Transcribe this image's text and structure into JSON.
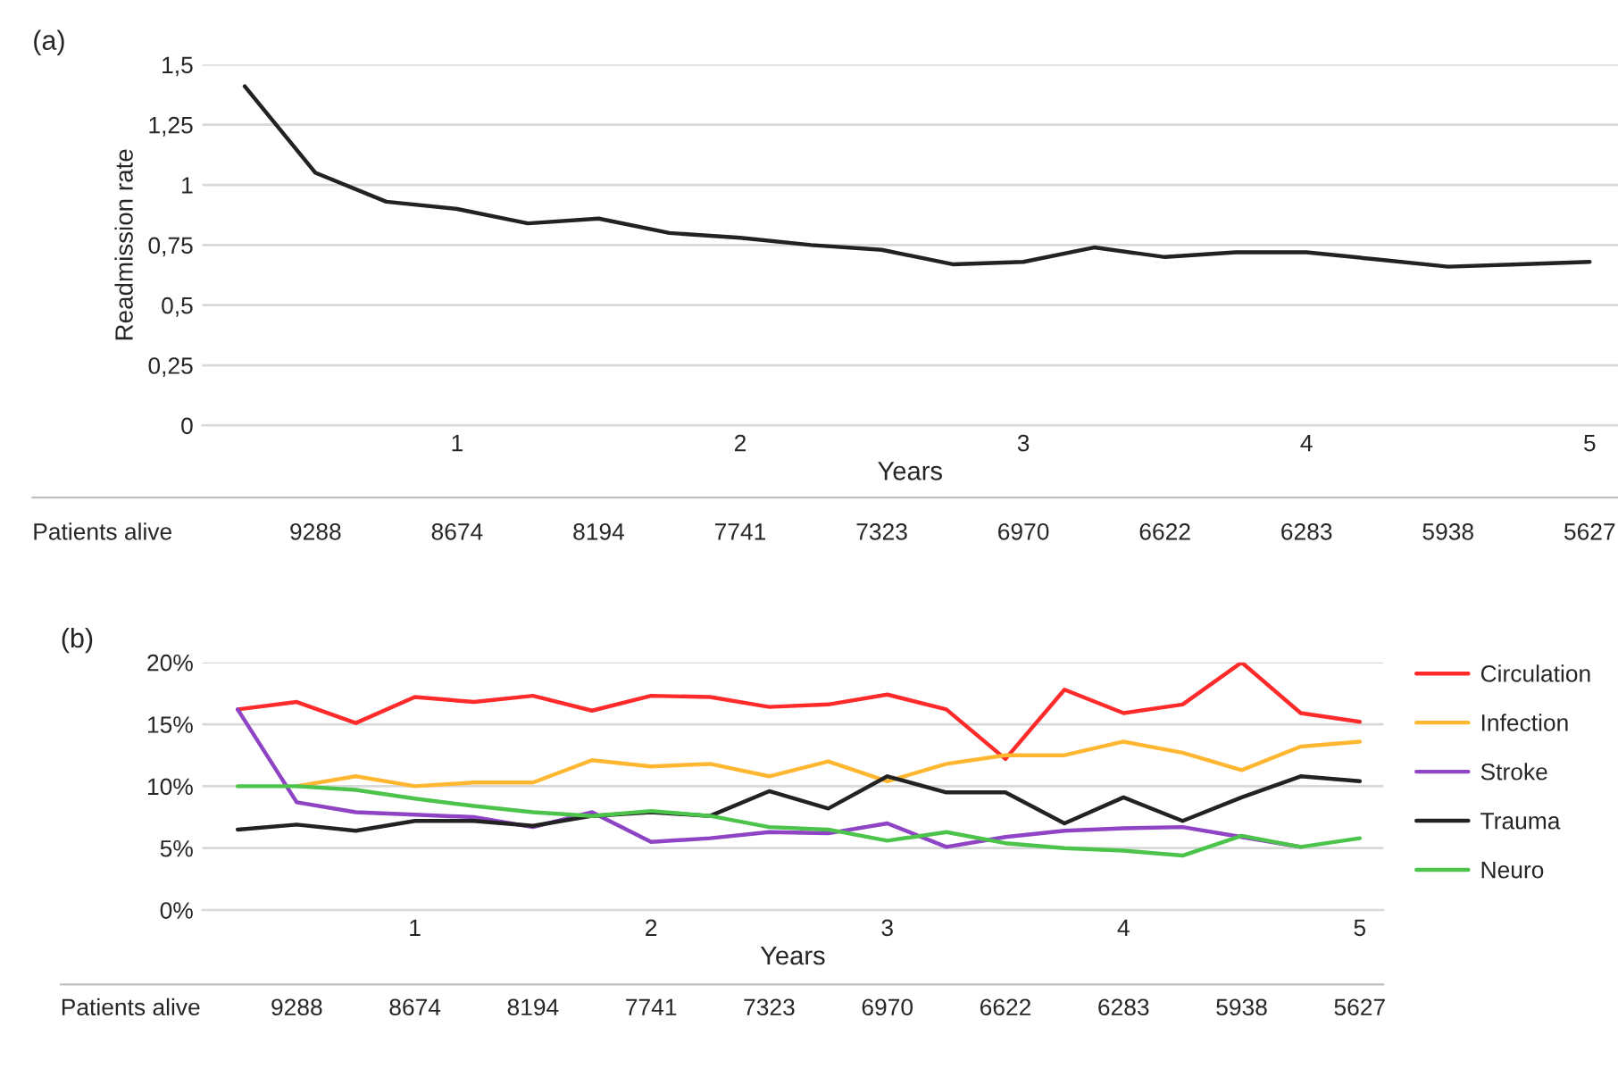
{
  "chart_data": [
    {
      "type": "line",
      "title": "(a)",
      "xlabel": "Years",
      "ylabel": "Readmission rate",
      "categories": [
        null,
        null,
        null,
        "1",
        null,
        null,
        null,
        "2",
        null,
        null,
        null,
        "3",
        null,
        null,
        null,
        "4",
        null,
        null,
        null,
        "5"
      ],
      "series": [
        {
          "color": "#222222",
          "values": [
            1.41,
            1.05,
            0.93,
            0.9,
            0.84,
            0.86,
            0.8,
            0.78,
            0.75,
            0.73,
            0.67,
            0.68,
            0.74,
            0.7,
            0.72,
            0.72,
            0.69,
            0.66,
            0.67,
            0.68
          ]
        }
      ],
      "ylim": [
        0,
        1.5
      ],
      "yticks": [
        {
          "value": 0,
          "label": "0"
        },
        {
          "value": 0.25,
          "label": "0,25"
        },
        {
          "value": 0.5,
          "label": "0,5"
        },
        {
          "value": 0.75,
          "label": "0,75"
        },
        {
          "value": 1,
          "label": "1"
        },
        {
          "value": 1.25,
          "label": "1,25"
        },
        {
          "value": 1.5,
          "label": "1,5"
        }
      ],
      "grid": "y",
      "legend": false,
      "marker": "none",
      "line_style": "solid",
      "annotations": [
        "Patients alive",
        "9288",
        "8674",
        "8194",
        "7741",
        "7323",
        "6970",
        "6622",
        "6283",
        "5938",
        "5627"
      ]
    },
    {
      "type": "line",
      "title": "(b)",
      "xlabel": "Years",
      "categories": [
        null,
        null,
        null,
        "1",
        null,
        null,
        null,
        "2",
        null,
        null,
        null,
        "3",
        null,
        null,
        null,
        "4",
        null,
        null,
        null,
        "5"
      ],
      "series": [
        {
          "name": "Circulation",
          "color": "#ff2a2a",
          "values": [
            16.2,
            16.8,
            15.1,
            17.2,
            16.8,
            17.3,
            16.1,
            17.3,
            17.2,
            16.4,
            16.6,
            17.4,
            16.2,
            12.2,
            17.8,
            15.9,
            16.6,
            20.0,
            15.9,
            15.2
          ]
        },
        {
          "name": "Infection",
          "color": "#ffb732",
          "values": [
            null,
            10.0,
            10.8,
            10.0,
            10.3,
            10.3,
            12.1,
            11.6,
            11.8,
            10.8,
            12.0,
            10.4,
            11.8,
            12.5,
            12.5,
            13.6,
            12.7,
            11.3,
            13.2,
            13.6
          ]
        },
        {
          "name": "Stroke",
          "color": "#8e44c4",
          "values": [
            16.2,
            8.7,
            7.9,
            7.7,
            7.5,
            6.7,
            7.9,
            5.5,
            5.8,
            6.3,
            6.2,
            7.0,
            5.1,
            5.9,
            6.4,
            6.6,
            6.7,
            5.9,
            5.1,
            null
          ]
        },
        {
          "name": "Trauma",
          "color": "#222222",
          "values": [
            6.5,
            6.9,
            6.4,
            7.2,
            7.2,
            6.8,
            7.6,
            7.9,
            7.6,
            9.6,
            8.2,
            10.8,
            9.5,
            9.5,
            7.0,
            9.1,
            7.2,
            9.1,
            10.8,
            10.4
          ]
        },
        {
          "name": "Neuro",
          "color": "#4cc44c",
          "values": [
            10.0,
            10.0,
            9.7,
            9.0,
            8.4,
            7.9,
            7.6,
            8.0,
            7.6,
            6.7,
            6.5,
            5.6,
            6.3,
            5.4,
            5.0,
            4.8,
            4.4,
            6.0,
            5.1,
            5.8
          ]
        }
      ],
      "ylim": [
        0,
        20
      ],
      "yticks": [
        {
          "value": 0,
          "label": "0%"
        },
        {
          "value": 5,
          "label": "5%"
        },
        {
          "value": 10,
          "label": "10%"
        },
        {
          "value": 15,
          "label": "15%"
        },
        {
          "value": 20,
          "label": "20%"
        }
      ],
      "grid": "y",
      "legend": "right",
      "marker": "none",
      "line_style": "solid",
      "annotations": [
        "Patients alive",
        "9288",
        "8674",
        "8194",
        "7741",
        "7323",
        "6970",
        "6622",
        "6283",
        "5938",
        "5627"
      ]
    }
  ]
}
